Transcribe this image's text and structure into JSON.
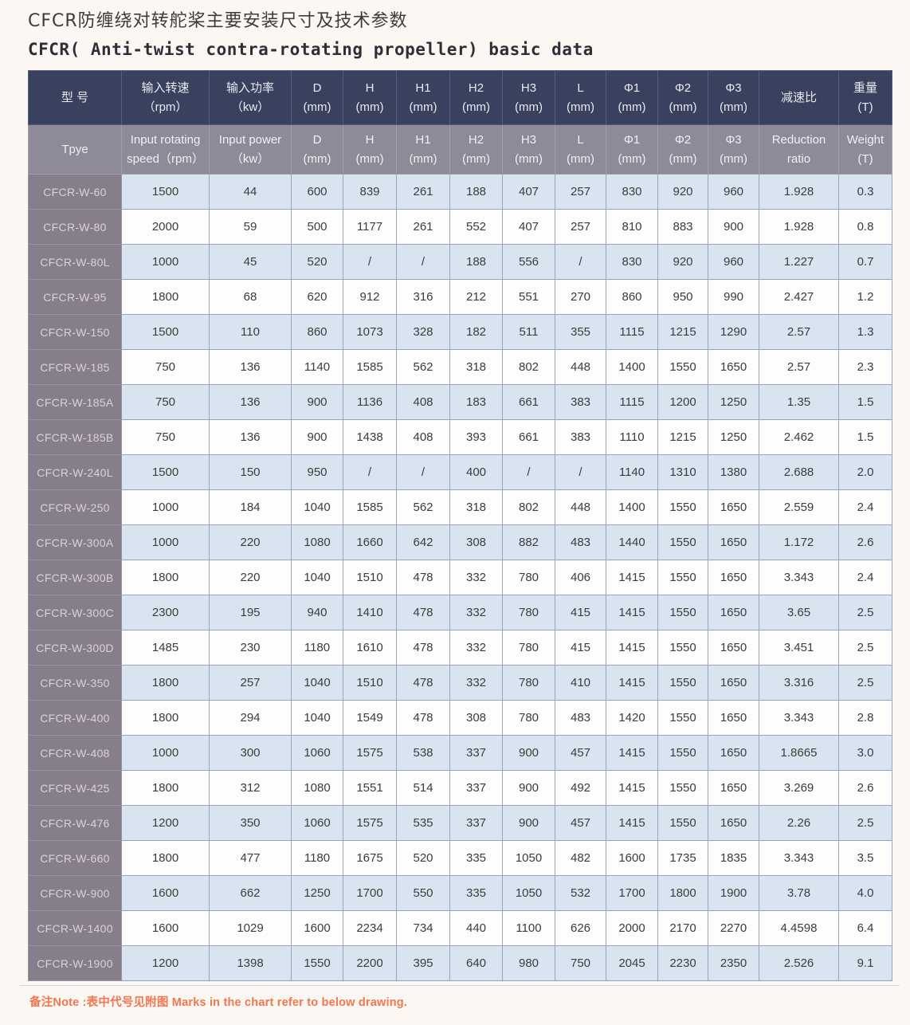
{
  "page": {
    "title_zh": "CFCR防缠绕对转舵桨主要安装尺寸及技术参数",
    "title_en": "CFCR( Anti-twist contra-rotating propeller) basic data",
    "note": "备注Note :表中代号见附图 Marks in the chart refer to below drawing.",
    "colors": {
      "header_bg": "#39415f",
      "subheader_bg": "#8f8a97",
      "type_column_bg": "#867e8b",
      "row_alt_bg": "#d8e5f0",
      "row_bg": "#fdfdfd",
      "note_color": "#f4764d",
      "grid": "#99a3bc"
    }
  },
  "table": {
    "columns": [
      {
        "key": "type",
        "zh": [
          "型  号",
          ""
        ],
        "en": [
          "Tpye",
          ""
        ]
      },
      {
        "key": "input-speed",
        "zh": [
          "输入转速",
          "（rpm）"
        ],
        "en": [
          "Input rotating",
          "speed（rpm）"
        ]
      },
      {
        "key": "input-power",
        "zh": [
          "输入功率",
          "（kw）"
        ],
        "en": [
          "Input power",
          "（kw）"
        ]
      },
      {
        "key": "d",
        "zh": [
          "D",
          "(mm)"
        ],
        "en": [
          "D",
          "(mm)"
        ]
      },
      {
        "key": "h",
        "zh": [
          "H",
          "(mm)"
        ],
        "en": [
          "H",
          "(mm)"
        ]
      },
      {
        "key": "h1",
        "zh": [
          "H1",
          "(mm)"
        ],
        "en": [
          "H1",
          "(mm)"
        ]
      },
      {
        "key": "h2",
        "zh": [
          "H2",
          "(mm)"
        ],
        "en": [
          "H2",
          "(mm)"
        ]
      },
      {
        "key": "h3",
        "zh": [
          "H3",
          "(mm)"
        ],
        "en": [
          "H3",
          "(mm)"
        ]
      },
      {
        "key": "l",
        "zh": [
          "L",
          "(mm)"
        ],
        "en": [
          "L",
          "(mm)"
        ]
      },
      {
        "key": "phi1",
        "zh": [
          "Φ1",
          "(mm)"
        ],
        "en": [
          "Φ1",
          "(mm)"
        ]
      },
      {
        "key": "phi2",
        "zh": [
          "Φ2",
          "(mm)"
        ],
        "en": [
          "Φ2",
          "(mm)"
        ]
      },
      {
        "key": "phi3",
        "zh": [
          "Φ3",
          "(mm)"
        ],
        "en": [
          "Φ3",
          "(mm)"
        ]
      },
      {
        "key": "reduction-ratio",
        "zh": [
          "减速比",
          ""
        ],
        "en": [
          "Reduction",
          "ratio"
        ]
      },
      {
        "key": "weight",
        "zh": [
          "重量",
          "(T)"
        ],
        "en": [
          "Weight",
          "(T)"
        ]
      }
    ],
    "rows": [
      [
        "CFCR-W-60",
        "1500",
        "44",
        "600",
        "839",
        "261",
        "188",
        "407",
        "257",
        "830",
        "920",
        "960",
        "1.928",
        "0.3"
      ],
      [
        "CFCR-W-80",
        "2000",
        "59",
        "500",
        "1177",
        "261",
        "552",
        "407",
        "257",
        "810",
        "883",
        "900",
        "1.928",
        "0.8"
      ],
      [
        "CFCR-W-80L",
        "1000",
        "45",
        "520",
        "/",
        "/",
        "188",
        "556",
        "/",
        "830",
        "920",
        "960",
        "1.227",
        "0.7"
      ],
      [
        "CFCR-W-95",
        "1800",
        "68",
        "620",
        "912",
        "316",
        "212",
        "551",
        "270",
        "860",
        "950",
        "990",
        "2.427",
        "1.2"
      ],
      [
        "CFCR-W-150",
        "1500",
        "110",
        "860",
        "1073",
        "328",
        "182",
        "511",
        "355",
        "1115",
        "1215",
        "1290",
        "2.57",
        "1.3"
      ],
      [
        "CFCR-W-185",
        "750",
        "136",
        "1140",
        "1585",
        "562",
        "318",
        "802",
        "448",
        "1400",
        "1550",
        "1650",
        "2.57",
        "2.3"
      ],
      [
        "CFCR-W-185A",
        "750",
        "136",
        "900",
        "1136",
        "408",
        "183",
        "661",
        "383",
        "1115",
        "1200",
        "1250",
        "1.35",
        "1.5"
      ],
      [
        "CFCR-W-185B",
        "750",
        "136",
        "900",
        "1438",
        "408",
        "393",
        "661",
        "383",
        "1110",
        "1215",
        "1250",
        "2.462",
        "1.5"
      ],
      [
        "CFCR-W-240L",
        "1500",
        "150",
        "950",
        "/",
        "/",
        "400",
        "/",
        "/",
        "1140",
        "1310",
        "1380",
        "2.688",
        "2.0"
      ],
      [
        "CFCR-W-250",
        "1000",
        "184",
        "1040",
        "1585",
        "562",
        "318",
        "802",
        "448",
        "1400",
        "1550",
        "1650",
        "2.559",
        "2.4"
      ],
      [
        "CFCR-W-300A",
        "1000",
        "220",
        "1080",
        "1660",
        "642",
        "308",
        "882",
        "483",
        "1440",
        "1550",
        "1650",
        "1.172",
        "2.6"
      ],
      [
        "CFCR-W-300B",
        "1800",
        "220",
        "1040",
        "1510",
        "478",
        "332",
        "780",
        "406",
        "1415",
        "1550",
        "1650",
        "3.343",
        "2.4"
      ],
      [
        "CFCR-W-300C",
        "2300",
        "195",
        "940",
        "1410",
        "478",
        "332",
        "780",
        "415",
        "1415",
        "1550",
        "1650",
        "3.65",
        "2.5"
      ],
      [
        "CFCR-W-300D",
        "1485",
        "230",
        "1180",
        "1610",
        "478",
        "332",
        "780",
        "415",
        "1415",
        "1550",
        "1650",
        "3.451",
        "2.5"
      ],
      [
        "CFCR-W-350",
        "1800",
        "257",
        "1040",
        "1510",
        "478",
        "332",
        "780",
        "410",
        "1415",
        "1550",
        "1650",
        "3.316",
        "2.5"
      ],
      [
        "CFCR-W-400",
        "1800",
        "294",
        "1040",
        "1549",
        "478",
        "308",
        "780",
        "483",
        "1420",
        "1550",
        "1650",
        "3.343",
        "2.8"
      ],
      [
        "CFCR-W-408",
        "1000",
        "300",
        "1060",
        "1575",
        "538",
        "337",
        "900",
        "457",
        "1415",
        "1550",
        "1650",
        "1.8665",
        "3.0"
      ],
      [
        "CFCR-W-425",
        "1800",
        "312",
        "1080",
        "1551",
        "514",
        "337",
        "900",
        "492",
        "1415",
        "1550",
        "1650",
        "3.269",
        "2.6"
      ],
      [
        "CFCR-W-476",
        "1200",
        "350",
        "1060",
        "1575",
        "535",
        "337",
        "900",
        "457",
        "1415",
        "1550",
        "1650",
        "2.26",
        "2.5"
      ],
      [
        "CFCR-W-660",
        "1800",
        "477",
        "1180",
        "1675",
        "520",
        "335",
        "1050",
        "482",
        "1600",
        "1735",
        "1835",
        "3.343",
        "3.5"
      ],
      [
        "CFCR-W-900",
        "1600",
        "662",
        "1250",
        "1700",
        "550",
        "335",
        "1050",
        "532",
        "1700",
        "1800",
        "1900",
        "3.78",
        "4.0"
      ],
      [
        "CFCR-W-1400",
        "1600",
        "1029",
        "1600",
        "2234",
        "734",
        "440",
        "1100",
        "626",
        "2000",
        "2170",
        "2270",
        "4.4598",
        "6.4"
      ],
      [
        "CFCR-W-1900",
        "1200",
        "1398",
        "1550",
        "2200",
        "395",
        "640",
        "980",
        "750",
        "2045",
        "2230",
        "2350",
        "2.526",
        "9.1"
      ]
    ]
  }
}
